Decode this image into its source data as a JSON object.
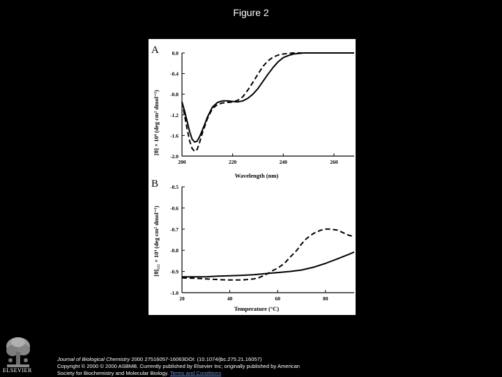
{
  "page": {
    "title": "Figure 2"
  },
  "footer": {
    "publisher": "ELSEVIER",
    "journal": "Journal of Biological Chemistry",
    "citation_rest": " 2000 27516057-16063DOI: (10.1074/jbc.275.21.16057)",
    "copyright": "Copyright © 2000 © 2000 ASBMB. Currently published by Elsevier Inc; originally published by American",
    "society": "Society for Biochemistry and Molecular Biology.",
    "terms_link": "Terms and Conditions"
  },
  "chart_data": [
    {
      "type": "line",
      "panel_label": "A",
      "xlabel": "Wavelength (nm)",
      "ylabel": "[θ] × 10⁴ (deg cm² dmol⁻¹)",
      "xlim": [
        200,
        268
      ],
      "ylim": [
        -2.0,
        0.0
      ],
      "x_ticks": [
        200,
        220,
        240,
        260
      ],
      "y_ticks": [
        "0.0",
        "-0.4",
        "-0.8",
        "-1.2",
        "-1.6",
        "-2.0"
      ],
      "grid": false,
      "legend": "none",
      "series": [
        {
          "style": "solid",
          "x": [
            200,
            201,
            202,
            203,
            204,
            205,
            206,
            207,
            208,
            209,
            210,
            212,
            214,
            216,
            218,
            220,
            222,
            224,
            226,
            228,
            230,
            232,
            234,
            236,
            238,
            240,
            242,
            244,
            246,
            248,
            250,
            254,
            258,
            262,
            266,
            268
          ],
          "y": [
            -0.95,
            -1.12,
            -1.32,
            -1.52,
            -1.67,
            -1.73,
            -1.71,
            -1.62,
            -1.5,
            -1.38,
            -1.25,
            -1.05,
            -0.96,
            -0.93,
            -0.93,
            -0.94,
            -0.95,
            -0.93,
            -0.88,
            -0.8,
            -0.69,
            -0.55,
            -0.41,
            -0.28,
            -0.17,
            -0.09,
            -0.05,
            -0.02,
            -0.01,
            0.0,
            0.0,
            0.0,
            0.0,
            0.0,
            0.0,
            0.0
          ]
        },
        {
          "style": "dashed",
          "x": [
            200,
            201,
            202,
            203,
            204,
            205,
            206,
            207,
            208,
            209,
            210,
            212,
            214,
            216,
            218,
            220,
            222,
            224,
            226,
            228,
            230,
            232,
            234,
            236,
            238,
            240,
            242,
            244,
            246,
            248,
            250,
            254,
            258,
            262,
            266,
            268
          ],
          "y": [
            -0.95,
            -1.2,
            -1.47,
            -1.7,
            -1.85,
            -1.91,
            -1.87,
            -1.73,
            -1.56,
            -1.42,
            -1.28,
            -1.08,
            -1.0,
            -0.97,
            -0.96,
            -0.95,
            -0.92,
            -0.85,
            -0.72,
            -0.57,
            -0.41,
            -0.26,
            -0.15,
            -0.08,
            -0.04,
            -0.02,
            -0.01,
            0.0,
            0.0,
            0.0,
            0.0,
            0.0,
            0.0,
            0.0,
            0.0,
            0.0
          ]
        }
      ]
    },
    {
      "type": "line",
      "panel_label": "B",
      "xlabel": "Temperature (°C)",
      "ylabel": "[θ]₂₂₂ × 10⁴ (deg cm² dmol⁻¹)",
      "xlim": [
        20,
        92
      ],
      "ylim": [
        -1.0,
        -0.5
      ],
      "x_ticks": [
        20,
        40,
        60,
        80
      ],
      "y_ticks": [
        "-0.5",
        "-0.6",
        "-0.7",
        "-0.8",
        "-0.9",
        "-1.0"
      ],
      "grid": false,
      "legend": "none",
      "series": [
        {
          "style": "solid",
          "x": [
            20,
            25,
            30,
            35,
            40,
            45,
            50,
            55,
            60,
            65,
            70,
            75,
            80,
            85,
            90,
            92
          ],
          "y": [
            -0.925,
            -0.925,
            -0.925,
            -0.922,
            -0.92,
            -0.918,
            -0.915,
            -0.91,
            -0.905,
            -0.9,
            -0.893,
            -0.88,
            -0.862,
            -0.84,
            -0.818,
            -0.808
          ]
        },
        {
          "style": "dashed",
          "x": [
            20,
            25,
            30,
            35,
            40,
            45,
            50,
            52,
            55,
            58,
            60,
            63,
            65,
            68,
            70,
            72,
            75,
            78,
            80,
            82,
            85,
            88,
            90,
            92
          ],
          "y": [
            -0.93,
            -0.932,
            -0.935,
            -0.938,
            -0.94,
            -0.94,
            -0.935,
            -0.93,
            -0.915,
            -0.895,
            -0.885,
            -0.86,
            -0.835,
            -0.8,
            -0.77,
            -0.745,
            -0.72,
            -0.705,
            -0.7,
            -0.7,
            -0.705,
            -0.72,
            -0.73,
            -0.735
          ]
        }
      ]
    }
  ]
}
